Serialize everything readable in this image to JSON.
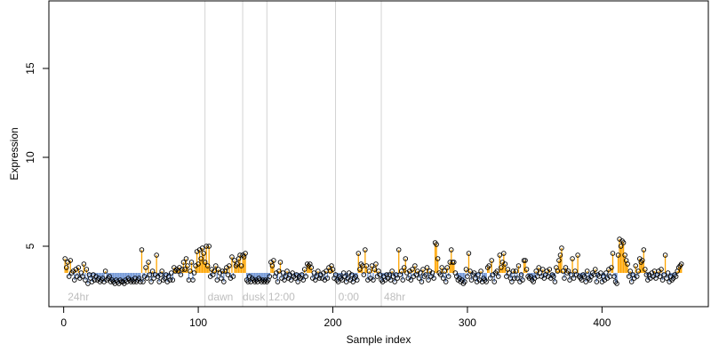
{
  "chart_data": {
    "type": "scatter",
    "xlabel": "Sample index",
    "ylabel": "Expression",
    "xlim": [
      -11,
      479
    ],
    "ylim": [
      1.6,
      18.8
    ],
    "x_ticks": [
      0,
      100,
      200,
      300,
      400
    ],
    "y_ticks": [
      5,
      10,
      15
    ],
    "baseline": 3.5,
    "colors": {
      "above_baseline": "#FFA500",
      "below_baseline": "#6F95D6",
      "separator": "#D3D3D3",
      "section_label": "#BEBEBE",
      "point_stroke": "#000000"
    },
    "section_separators": [
      105,
      133,
      151,
      202,
      236
    ],
    "section_labels": [
      {
        "text": "24hr",
        "x": 3
      },
      {
        "text": "dawn",
        "x": 107
      },
      {
        "text": "dusk",
        "x": 133
      },
      {
        "text": "12:00",
        "x": 152
      },
      {
        "text": "0:00",
        "x": 204
      },
      {
        "text": "48hr",
        "x": 238
      }
    ],
    "values": [
      4.3,
      3.8,
      4.1,
      3.3,
      4.2,
      3.5,
      3.6,
      3.1,
      3.7,
      3.3,
      3.8,
      3.2,
      3.5,
      3.3,
      4.0,
      3.1,
      3.7,
      2.9,
      3.4,
      3.2,
      3.0,
      3.4,
      3.1,
      3.3,
      3.1,
      3.2,
      3.0,
      3.1,
      3.2,
      3.0,
      3.6,
      3.1,
      3.2,
      3.3,
      3.0,
      3.1,
      3.0,
      2.9,
      3.1,
      3.0,
      2.9,
      3.1,
      3.0,
      3.0,
      2.9,
      3.1,
      3.0,
      3.2,
      3.1,
      3.0,
      3.1,
      3.0,
      3.2,
      3.0,
      3.1,
      3.2,
      3.0,
      4.8,
      3.0,
      3.3,
      3.8,
      3.2,
      4.1,
      3.4,
      3.0,
      3.6,
      3.2,
      3.4,
      4.5,
      3.3,
      3.0,
      3.4,
      3.6,
      3.1,
      3.2,
      3.4,
      3.0,
      3.3,
      3.1,
      3.5,
      3.1,
      3.8,
      3.6,
      3.7,
      3.6,
      3.8,
      3.4,
      3.7,
      4.1,
      3.7,
      4.3,
      3.9,
      3.1,
      3.6,
      4.1,
      3.1,
      3.5,
      3.9,
      4.7,
      4.0,
      4.8,
      4.3,
      4.9,
      4.6,
      4.1,
      5.0,
      3.9,
      5.0,
      3.3,
      3.7,
      3.4,
      3.6,
      3.9,
      3.1,
      3.7,
      3.5,
      3.2,
      3.6,
      3.0,
      3.6,
      3.8,
      3.4,
      3.9,
      3.2,
      4.4,
      3.3,
      4.2,
      3.9,
      4.0,
      4.3,
      4.5,
      3.9,
      4.5,
      4.4,
      4.6,
      3.1,
      3.0,
      3.3,
      3.0,
      3.2,
      3.1,
      3.0,
      3.1,
      3.0,
      3.2,
      3.1,
      3.0,
      3.1,
      3.0,
      3.1,
      3.0,
      3.1,
      3.3,
      4.1,
      3.9,
      4.2,
      3.3,
      3.5,
      3.0,
      3.6,
      4.1,
      3.2,
      3.5,
      3.1,
      3.3,
      3.6,
      3.2,
      3.4,
      3.1,
      3.5,
      3.3,
      3.2,
      3.4,
      3.0,
      3.3,
      3.2,
      3.4,
      3.1,
      3.7,
      3.3,
      4.0,
      3.9,
      4.0,
      3.8,
      3.2,
      3.5,
      3.1,
      3.3,
      3.6,
      3.2,
      3.4,
      3.2,
      3.5,
      3.1,
      3.6,
      3.2,
      3.8,
      3.6,
      3.9,
      3.7,
      3.2,
      3.4,
      3.1,
      3.0,
      3.3,
      3.2,
      3.1,
      3.5,
      3.3,
      3.0,
      3.2,
      3.5,
      3.1,
      3.4,
      3.0,
      3.2,
      3.3,
      3.1,
      4.6,
      3.7,
      4.0,
      3.9,
      3.4,
      4.8,
      3.9,
      3.1,
      3.6,
      3.2,
      3.9,
      3.1,
      3.7,
      4.0,
      3.3,
      3.6,
      3.4,
      3.1,
      3.0,
      3.3,
      3.1,
      3.4,
      3.2,
      3.4,
      3.1,
      3.6,
      3.3,
      3.0,
      3.4,
      3.2,
      4.8,
      3.4,
      3.6,
      3.1,
      3.8,
      4.3,
      3.5,
      3.2,
      3.6,
      3.1,
      3.7,
      3.3,
      3.9,
      3.4,
      3.6,
      3.2,
      3.5,
      3.0,
      3.7,
      3.3,
      3.4,
      3.8,
      3.1,
      3.6,
      3.3,
      3.5,
      3.2,
      5.2,
      5.1,
      4.3,
      3.5,
      3.4,
      3.8,
      3.2,
      3.6,
      3.0,
      3.8,
      3.3,
      4.1,
      4.8,
      4.1,
      4.1,
      3.5,
      3.3,
      3.1,
      3.2,
      3.0,
      3.1,
      2.9,
      3.0,
      3.7,
      3.3,
      4.6,
      3.6,
      3.1,
      3.4,
      3.5,
      3.2,
      3.0,
      3.4,
      3.1,
      3.6,
      3.0,
      3.2,
      3.1,
      3.0,
      3.8,
      3.9,
      3.2,
      4.2,
      3.4,
      3.0,
      3.5,
      3.6,
      3.3,
      4.5,
      3.8,
      4.1,
      4.6,
      4.0,
      3.3,
      3.7,
      3.5,
      3.2,
      3.0,
      3.6,
      3.2,
      3.6,
      3.2,
      3.9,
      3.0,
      3.4,
      3.1,
      4.2,
      4.2,
      3.7,
      3.3,
      3.2,
      3.3,
      3.1,
      3.0,
      3.2,
      3.6,
      3.3,
      3.8,
      3.5,
      3.3,
      3.7,
      3.2,
      3.4,
      3.6,
      3.3,
      3.7,
      3.2,
      3.4,
      3.3,
      3.0,
      3.8,
      3.6,
      4.2,
      4.5,
      4.9,
      3.6,
      3.2,
      3.8,
      3.5,
      3.6,
      3.1,
      3.4,
      4.3,
      3.2,
      3.6,
      3.4,
      4.5,
      3.3,
      3.2,
      3.1,
      3.4,
      3.3,
      3.0,
      3.6,
      3.2,
      3.1,
      3.3,
      3.5,
      3.4,
      3.7,
      3.0,
      3.4,
      3.3,
      3.5,
      3.0,
      3.3,
      3.1,
      3.5,
      3.2,
      3.7,
      3.3,
      3.8,
      4.6,
      3.3,
      3.0,
      2.9,
      4.5,
      5.4,
      5.0,
      5.3,
      5.2,
      4.5,
      4.2,
      4.0,
      3.3,
      3.6,
      3.0,
      3.4,
      3.2,
      3.9,
      3.3,
      3.6,
      4.3,
      4.1,
      4.2,
      4.8,
      3.7,
      3.4,
      3.1,
      3.4,
      3.2,
      3.5,
      3.3,
      3.6,
      3.2,
      3.4,
      3.6,
      3.3,
      3.7,
      3.1,
      3.4,
      4.5,
      3.2,
      3.5,
      3.0,
      3.3,
      3.1,
      3.2,
      3.4,
      3.3,
      3.6,
      3.8,
      3.9,
      4.0
    ]
  }
}
